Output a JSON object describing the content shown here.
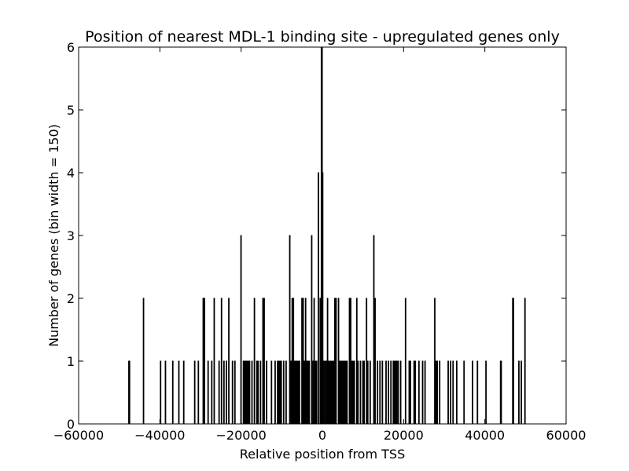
{
  "chart_data": {
    "type": "bar",
    "title": "Position of nearest MDL-1 binding site - upregulated genes only",
    "xlabel": "Relative position from TSS",
    "ylabel": "Number of genes (bin width = 150)",
    "xlim": [
      -60000,
      60000
    ],
    "ylim": [
      0,
      6
    ],
    "bin_width": 150,
    "xticks": [
      -60000,
      -40000,
      -20000,
      0,
      20000,
      40000,
      60000
    ],
    "yticks": [
      0,
      1,
      2,
      3,
      4,
      5,
      6
    ],
    "xtick_labels": [
      "−60000",
      "−40000",
      "−20000",
      "0",
      "20000",
      "40000",
      "60000"
    ],
    "ytick_labels": [
      "0",
      "1",
      "2",
      "3",
      "4",
      "5",
      "6"
    ],
    "grid": false,
    "legend": "none",
    "colors": {
      "bar_edge": "#000000",
      "bar_fill": "#000000"
    },
    "bins": [
      {
        "x": -47700,
        "count": 1
      },
      {
        "x": -47550,
        "count": 1
      },
      {
        "x": -44100,
        "count": 2
      },
      {
        "x": -39900,
        "count": 1
      },
      {
        "x": -38700,
        "count": 1
      },
      {
        "x": -36900,
        "count": 1
      },
      {
        "x": -35400,
        "count": 1
      },
      {
        "x": -34200,
        "count": 1
      },
      {
        "x": -31500,
        "count": 1
      },
      {
        "x": -30600,
        "count": 1
      },
      {
        "x": -29400,
        "count": 2
      },
      {
        "x": -29100,
        "count": 2
      },
      {
        "x": -28200,
        "count": 1
      },
      {
        "x": -27300,
        "count": 1
      },
      {
        "x": -26700,
        "count": 2
      },
      {
        "x": -25500,
        "count": 1
      },
      {
        "x": -24900,
        "count": 2
      },
      {
        "x": -24300,
        "count": 1
      },
      {
        "x": -23700,
        "count": 1
      },
      {
        "x": -23100,
        "count": 2
      },
      {
        "x": -22200,
        "count": 1
      },
      {
        "x": -21600,
        "count": 1
      },
      {
        "x": -20100,
        "count": 3
      },
      {
        "x": -19500,
        "count": 1
      },
      {
        "x": -19200,
        "count": 1
      },
      {
        "x": -18900,
        "count": 1
      },
      {
        "x": -18600,
        "count": 1
      },
      {
        "x": -18300,
        "count": 1
      },
      {
        "x": -18000,
        "count": 1
      },
      {
        "x": -17400,
        "count": 1
      },
      {
        "x": -16800,
        "count": 2
      },
      {
        "x": -16200,
        "count": 1
      },
      {
        "x": -15900,
        "count": 1
      },
      {
        "x": -15300,
        "count": 1
      },
      {
        "x": -14700,
        "count": 2
      },
      {
        "x": -14400,
        "count": 2
      },
      {
        "x": -13800,
        "count": 1
      },
      {
        "x": -12600,
        "count": 1
      },
      {
        "x": -11700,
        "count": 1
      },
      {
        "x": -11100,
        "count": 1
      },
      {
        "x": -10800,
        "count": 1
      },
      {
        "x": -10500,
        "count": 1
      },
      {
        "x": -10200,
        "count": 1
      },
      {
        "x": -9600,
        "count": 1
      },
      {
        "x": -9000,
        "count": 1
      },
      {
        "x": -8100,
        "count": 3
      },
      {
        "x": -7800,
        "count": 1
      },
      {
        "x": -7500,
        "count": 2
      },
      {
        "x": -7200,
        "count": 2
      },
      {
        "x": -6900,
        "count": 1
      },
      {
        "x": -6600,
        "count": 1
      },
      {
        "x": -6300,
        "count": 1
      },
      {
        "x": -6000,
        "count": 1
      },
      {
        "x": -5700,
        "count": 1
      },
      {
        "x": -5100,
        "count": 2
      },
      {
        "x": -4800,
        "count": 2
      },
      {
        "x": -4500,
        "count": 1
      },
      {
        "x": -4200,
        "count": 2
      },
      {
        "x": -3900,
        "count": 1
      },
      {
        "x": -3600,
        "count": 1
      },
      {
        "x": -3300,
        "count": 1
      },
      {
        "x": -2700,
        "count": 3
      },
      {
        "x": -2400,
        "count": 1
      },
      {
        "x": -2100,
        "count": 2
      },
      {
        "x": -1800,
        "count": 1
      },
      {
        "x": -1500,
        "count": 1
      },
      {
        "x": -1050,
        "count": 4
      },
      {
        "x": -600,
        "count": 2
      },
      {
        "x": -300,
        "count": 6
      },
      {
        "x": -150,
        "count": 6
      },
      {
        "x": 0,
        "count": 4
      },
      {
        "x": 300,
        "count": 1
      },
      {
        "x": 600,
        "count": 1
      },
      {
        "x": 900,
        "count": 1
      },
      {
        "x": 1200,
        "count": 2
      },
      {
        "x": 1500,
        "count": 1
      },
      {
        "x": 1800,
        "count": 1
      },
      {
        "x": 2100,
        "count": 1
      },
      {
        "x": 2400,
        "count": 1
      },
      {
        "x": 2700,
        "count": 1
      },
      {
        "x": 3000,
        "count": 2
      },
      {
        "x": 3300,
        "count": 2
      },
      {
        "x": 3900,
        "count": 2
      },
      {
        "x": 4200,
        "count": 1
      },
      {
        "x": 4500,
        "count": 1
      },
      {
        "x": 4800,
        "count": 1
      },
      {
        "x": 5100,
        "count": 1
      },
      {
        "x": 5400,
        "count": 1
      },
      {
        "x": 5700,
        "count": 1
      },
      {
        "x": 6000,
        "count": 1
      },
      {
        "x": 6600,
        "count": 2
      },
      {
        "x": 6900,
        "count": 2
      },
      {
        "x": 7200,
        "count": 1
      },
      {
        "x": 7500,
        "count": 1
      },
      {
        "x": 7800,
        "count": 1
      },
      {
        "x": 8400,
        "count": 2
      },
      {
        "x": 8700,
        "count": 1
      },
      {
        "x": 9300,
        "count": 1
      },
      {
        "x": 9900,
        "count": 1
      },
      {
        "x": 10200,
        "count": 1
      },
      {
        "x": 10800,
        "count": 2
      },
      {
        "x": 11100,
        "count": 1
      },
      {
        "x": 11700,
        "count": 1
      },
      {
        "x": 12600,
        "count": 3
      },
      {
        "x": 12900,
        "count": 2
      },
      {
        "x": 13500,
        "count": 1
      },
      {
        "x": 14100,
        "count": 1
      },
      {
        "x": 14700,
        "count": 1
      },
      {
        "x": 15600,
        "count": 1
      },
      {
        "x": 16200,
        "count": 1
      },
      {
        "x": 16800,
        "count": 1
      },
      {
        "x": 17400,
        "count": 1
      },
      {
        "x": 17700,
        "count": 1
      },
      {
        "x": 18000,
        "count": 1
      },
      {
        "x": 18300,
        "count": 1
      },
      {
        "x": 18600,
        "count": 1
      },
      {
        "x": 19200,
        "count": 1
      },
      {
        "x": 20400,
        "count": 2
      },
      {
        "x": 21300,
        "count": 1
      },
      {
        "x": 21600,
        "count": 1
      },
      {
        "x": 22500,
        "count": 1
      },
      {
        "x": 22800,
        "count": 1
      },
      {
        "x": 23700,
        "count": 1
      },
      {
        "x": 24600,
        "count": 1
      },
      {
        "x": 25200,
        "count": 1
      },
      {
        "x": 27600,
        "count": 2
      },
      {
        "x": 27900,
        "count": 1
      },
      {
        "x": 28200,
        "count": 1
      },
      {
        "x": 28800,
        "count": 1
      },
      {
        "x": 30900,
        "count": 1
      },
      {
        "x": 31500,
        "count": 1
      },
      {
        "x": 32100,
        "count": 1
      },
      {
        "x": 33000,
        "count": 1
      },
      {
        "x": 34800,
        "count": 1
      },
      {
        "x": 36900,
        "count": 1
      },
      {
        "x": 38100,
        "count": 1
      },
      {
        "x": 40200,
        "count": 1
      },
      {
        "x": 43800,
        "count": 1
      },
      {
        "x": 43950,
        "count": 1
      },
      {
        "x": 46800,
        "count": 2
      },
      {
        "x": 46950,
        "count": 2
      },
      {
        "x": 48300,
        "count": 1
      },
      {
        "x": 48900,
        "count": 1
      },
      {
        "x": 49800,
        "count": 2
      }
    ]
  }
}
